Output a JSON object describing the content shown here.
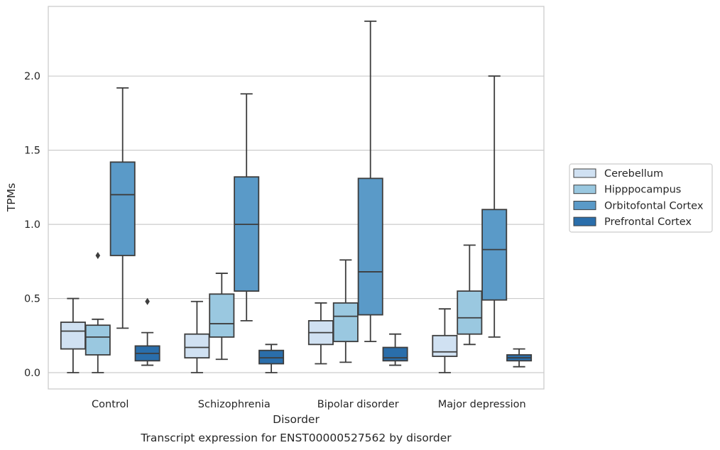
{
  "chart_data": {
    "type": "box",
    "caption": "Transcript expression for ENST00000527562 by disorder",
    "xlabel": "Disorder",
    "ylabel": "TPMs",
    "ylim": [
      -0.11,
      2.47
    ],
    "yticks": [
      0.0,
      0.5,
      1.0,
      1.5,
      2.0
    ],
    "ytick_labels": [
      "0.0",
      "0.5",
      "1.0",
      "1.5",
      "2.0"
    ],
    "grid": "horizontal",
    "legend_position": "right",
    "categories": [
      "Control",
      "Schizophrenia",
      "Bipolar disorder",
      "Major depression"
    ],
    "series": [
      {
        "name": "Cerebellum",
        "color": "#d0e1f2",
        "boxes": [
          {
            "whislo": 0.0,
            "q1": 0.16,
            "med": 0.28,
            "q3": 0.34,
            "whishi": 0.5,
            "fliers": []
          },
          {
            "whislo": 0.0,
            "q1": 0.1,
            "med": 0.17,
            "q3": 0.26,
            "whishi": 0.48,
            "fliers": []
          },
          {
            "whislo": 0.06,
            "q1": 0.19,
            "med": 0.27,
            "q3": 0.35,
            "whishi": 0.47,
            "fliers": []
          },
          {
            "whislo": 0.0,
            "q1": 0.11,
            "med": 0.14,
            "q3": 0.25,
            "whishi": 0.43,
            "fliers": []
          }
        ]
      },
      {
        "name": "Hipppocampus",
        "color": "#9ac8e0",
        "boxes": [
          {
            "whislo": 0.0,
            "q1": 0.12,
            "med": 0.24,
            "q3": 0.32,
            "whishi": 0.36,
            "fliers": [
              0.79
            ]
          },
          {
            "whislo": 0.09,
            "q1": 0.24,
            "med": 0.33,
            "q3": 0.53,
            "whishi": 0.67,
            "fliers": []
          },
          {
            "whislo": 0.07,
            "q1": 0.21,
            "med": 0.38,
            "q3": 0.47,
            "whishi": 0.76,
            "fliers": []
          },
          {
            "whislo": 0.19,
            "q1": 0.26,
            "med": 0.37,
            "q3": 0.55,
            "whishi": 0.86,
            "fliers": []
          }
        ]
      },
      {
        "name": "Orbitofontal Cortex",
        "color": "#5a9ac8",
        "boxes": [
          {
            "whislo": 0.3,
            "q1": 0.79,
            "med": 1.2,
            "q3": 1.42,
            "whishi": 1.92,
            "fliers": []
          },
          {
            "whislo": 0.35,
            "q1": 0.55,
            "med": 1.0,
            "q3": 1.32,
            "whishi": 1.88,
            "fliers": []
          },
          {
            "whislo": 0.21,
            "q1": 0.39,
            "med": 0.68,
            "q3": 1.31,
            "whishi": 2.37,
            "fliers": []
          },
          {
            "whislo": 0.24,
            "q1": 0.49,
            "med": 0.83,
            "q3": 1.1,
            "whishi": 2.0,
            "fliers": []
          }
        ]
      },
      {
        "name": "Prefrontal Cortex",
        "color": "#2a6eab",
        "boxes": [
          {
            "whislo": 0.05,
            "q1": 0.08,
            "med": 0.13,
            "q3": 0.18,
            "whishi": 0.27,
            "fliers": [
              0.48
            ]
          },
          {
            "whislo": 0.0,
            "q1": 0.06,
            "med": 0.1,
            "q3": 0.15,
            "whishi": 0.19,
            "fliers": []
          },
          {
            "whislo": 0.05,
            "q1": 0.08,
            "med": 0.1,
            "q3": 0.17,
            "whishi": 0.26,
            "fliers": []
          },
          {
            "whislo": 0.04,
            "q1": 0.08,
            "med": 0.1,
            "q3": 0.12,
            "whishi": 0.16,
            "fliers": []
          }
        ]
      }
    ]
  }
}
